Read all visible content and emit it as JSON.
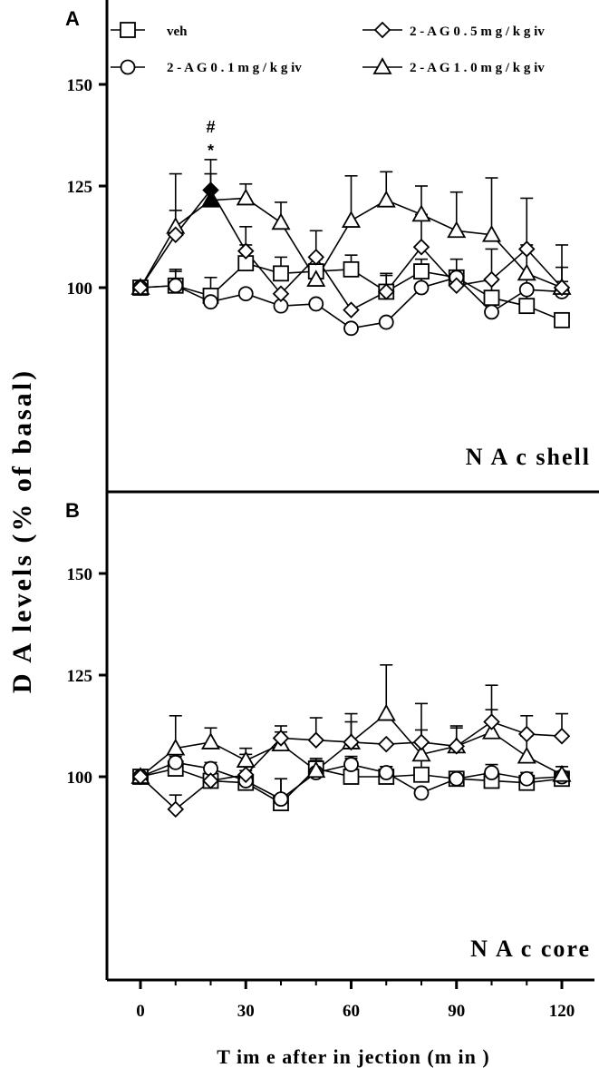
{
  "figure": {
    "ylabel": "D A  levels (%  of  basal)",
    "xlabel": "T im e  after in jection  (m in )",
    "legend": {
      "veh": "veh",
      "ag01": "2 - A G  0 . 1  m g / k g  iv",
      "ag05": "2 - A G  0 . 5  m g / k g  iv",
      "ag10": "2 - A G  1 . 0  m g / k g  iv"
    }
  },
  "chart_data": [
    {
      "type": "line",
      "panel_label": "A",
      "region_label": "N A c  shell",
      "x": [
        0,
        10,
        20,
        30,
        40,
        50,
        60,
        70,
        80,
        90,
        100,
        110,
        120
      ],
      "ylim": [
        75,
        160
      ],
      "yticks": [
        100,
        125,
        150
      ],
      "xlim": [
        -8,
        128
      ],
      "xticks": [
        0,
        30,
        60,
        90,
        120
      ],
      "legend_position": "top",
      "significance": [
        {
          "x": 20,
          "marks": [
            "#",
            "*"
          ]
        }
      ],
      "series": [
        {
          "key": "veh",
          "marker": "square",
          "values": [
            100,
            100.5,
            98,
            106,
            103.5,
            104,
            104.5,
            99,
            104,
            102.5,
            97.5,
            95.5,
            92
          ],
          "err": [
            0,
            3.5,
            4.5,
            4.5,
            4,
            3,
            3.5,
            4.5,
            3,
            4.5,
            4,
            4,
            0
          ]
        },
        {
          "key": "ag01",
          "marker": "circle",
          "values": [
            100,
            100.5,
            96.5,
            98.5,
            95.5,
            96,
            90,
            91.5,
            100,
            102.5,
            94,
            99.5,
            99
          ],
          "err": [
            0,
            4,
            0,
            0,
            0,
            0,
            0,
            0,
            3,
            0,
            0,
            3,
            2.5
          ]
        },
        {
          "key": "ag05",
          "marker": "diamond",
          "values": [
            100,
            113,
            124,
            109,
            98.5,
            107.5,
            94.5,
            99,
            110,
            100.5,
            102,
            109.5,
            100
          ],
          "err": [
            0,
            15,
            7.5,
            6,
            0,
            6.5,
            0,
            4,
            8,
            0,
            7.5,
            12.5,
            10.5
          ],
          "filled_x": [
            20
          ]
        },
        {
          "key": "ag10",
          "marker": "triangle",
          "values": [
            100,
            115,
            121.5,
            122,
            116,
            102,
            116.5,
            121.5,
            118,
            114,
            113,
            103.5,
            100
          ],
          "err": [
            0,
            4,
            6.5,
            3.5,
            5,
            5,
            11,
            7,
            7,
            9.5,
            14,
            7,
            5
          ],
          "filled_x": [
            20
          ]
        }
      ]
    },
    {
      "type": "line",
      "panel_label": "B",
      "region_label": "N A c  core",
      "x": [
        0,
        10,
        20,
        30,
        40,
        50,
        60,
        70,
        80,
        90,
        100,
        110,
        120
      ],
      "ylim": [
        73,
        160
      ],
      "yticks": [
        100,
        125,
        150
      ],
      "xlim": [
        -8,
        128
      ],
      "xticks": [
        0,
        30,
        60,
        90,
        120
      ],
      "series": [
        {
          "key": "veh",
          "marker": "square",
          "values": [
            100,
            102,
            99,
            98.5,
            93.5,
            102,
            100,
            100,
            100.5,
            99.5,
            99,
            98.5,
            99.5
          ],
          "err": [
            0,
            3,
            4.5,
            3,
            6,
            2,
            5,
            2.5,
            4,
            0,
            3,
            2.5,
            3
          ]
        },
        {
          "key": "ag01",
          "marker": "circle",
          "values": [
            100,
            103.5,
            102,
            99,
            94.5,
            101,
            103,
            101,
            96,
            99.5,
            101,
            99.5,
            100
          ],
          "err": [
            0,
            0,
            0,
            0,
            5,
            0,
            1.5,
            1.5,
            0,
            1.5,
            2,
            1.5,
            0
          ]
        },
        {
          "key": "ag05",
          "marker": "diamond",
          "values": [
            100,
            92,
            99,
            100.5,
            109.5,
            109,
            108.5,
            108,
            108.5,
            107.5,
            113.5,
            110.5,
            110
          ],
          "err": [
            0,
            3.5,
            0,
            5,
            3,
            5.5,
            7,
            0,
            9.5,
            4.5,
            9,
            4.5,
            5.5
          ]
        },
        {
          "key": "ag10",
          "marker": "triangle",
          "values": [
            100,
            107,
            108.5,
            104,
            108,
            101.5,
            108.5,
            115.5,
            105.5,
            107.5,
            111,
            105,
            100.5
          ],
          "err": [
            0,
            8,
            3.5,
            3,
            3,
            3,
            5,
            12,
            6,
            5,
            5.5,
            5,
            2
          ]
        }
      ]
    }
  ]
}
